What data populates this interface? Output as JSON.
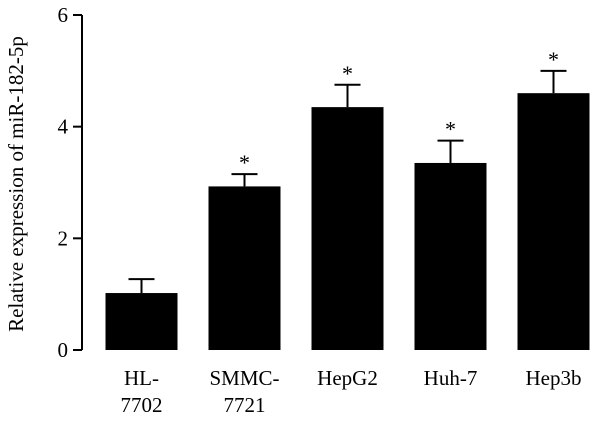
{
  "chart_data": {
    "type": "bar",
    "title": "",
    "xlabel": "",
    "ylabel": "Relative expression of miR-182-5p",
    "ylim": [
      0,
      6
    ],
    "yticks": [
      0,
      2,
      4,
      6
    ],
    "grid": false,
    "legend": "none",
    "bar_color": "#000000",
    "categories": [
      [
        "HL-",
        "7702"
      ],
      [
        "SMMC-",
        "7721"
      ],
      [
        "HepG2"
      ],
      [
        "Huh-7"
      ],
      [
        "Hep3b"
      ]
    ],
    "values": [
      1.02,
      2.93,
      4.35,
      3.35,
      4.6
    ],
    "errors": [
      0.25,
      0.22,
      0.4,
      0.4,
      0.4
    ],
    "significance": [
      "",
      "*",
      "*",
      "*",
      "*"
    ]
  }
}
